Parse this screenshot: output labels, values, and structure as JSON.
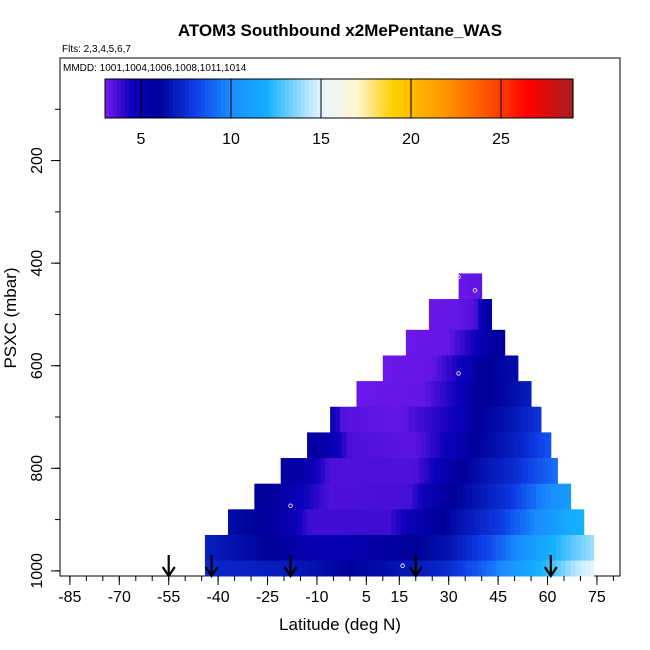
{
  "chart_data": {
    "type": "heatmap",
    "title": "ATOM3 Southbound x2MePentane_WAS",
    "flights_note": "Flts: 2,3,4,5,6,7",
    "mmdd_note": "MMDD: 1001,1004,1006,1008,1011,1014",
    "xlabel": "Latitude (deg N)",
    "ylabel": "PSXC (mbar)",
    "xlim": [
      -88,
      82
    ],
    "ylim": [
      1010,
      0
    ],
    "x_ticks": [
      -85,
      -70,
      -55,
      -40,
      -25,
      -10,
      5,
      15,
      30,
      45,
      60,
      75
    ],
    "x_tick_labels": [
      "-85",
      "-70",
      "-55",
      "-40",
      "-25",
      "-10",
      "5",
      "15",
      "30",
      "45",
      "60",
      "75"
    ],
    "y_ticks": [
      200,
      400,
      600,
      800,
      1000
    ],
    "y_tick_labels": [
      "200",
      "400",
      "600",
      "800",
      "1000"
    ],
    "colorbar": {
      "min": 3,
      "max": 29,
      "ticks": [
        5,
        10,
        15,
        20,
        25
      ],
      "tick_labels": [
        "5",
        "10",
        "15",
        "20",
        "25"
      ],
      "stops": [
        {
          "v": 3,
          "c": "#7a1bf0"
        },
        {
          "v": 4.5,
          "c": "#0b00bb"
        },
        {
          "v": 6,
          "c": "#000098"
        },
        {
          "v": 8,
          "c": "#0f3ee8"
        },
        {
          "v": 10,
          "c": "#1a8dff"
        },
        {
          "v": 12,
          "c": "#14b0ff"
        },
        {
          "v": 15,
          "c": "#e6f6ff"
        },
        {
          "v": 17,
          "c": "#fff6d2"
        },
        {
          "v": 19,
          "c": "#ffd000"
        },
        {
          "v": 22,
          "c": "#ff9400"
        },
        {
          "v": 25,
          "c": "#ff3a00"
        },
        {
          "v": 26.5,
          "c": "#ff0000"
        },
        {
          "v": 29,
          "c": "#a51e22"
        }
      ]
    },
    "arrow_latitudes": [
      -55,
      -42,
      -18,
      20,
      61
    ],
    "sample_points": [
      {
        "x": 33,
        "y": 427
      },
      {
        "x": 38,
        "y": 453
      },
      {
        "x": 33,
        "y": 615
      },
      {
        "x": -18,
        "y": 873
      },
      {
        "x": 16,
        "y": 990
      }
    ],
    "layers": [
      {
        "p_top": 420,
        "p_bot": 470,
        "lat_min": 33,
        "lat_max": 40,
        "cols": [
          [
            33,
            3.2
          ],
          [
            40,
            3.4
          ]
        ]
      },
      {
        "p_top": 470,
        "p_bot": 530,
        "lat_min": 24,
        "lat_max": 43,
        "cols": [
          [
            24,
            3.2
          ],
          [
            33,
            3.3
          ],
          [
            38,
            3.6
          ],
          [
            41,
            5.2
          ],
          [
            43,
            5.8
          ]
        ]
      },
      {
        "p_top": 530,
        "p_bot": 580,
        "lat_min": 17,
        "lat_max": 47,
        "cols": [
          [
            17,
            3.2
          ],
          [
            30,
            3.3
          ],
          [
            38,
            4.5
          ],
          [
            42,
            5.4
          ],
          [
            47,
            6.0
          ]
        ]
      },
      {
        "p_top": 580,
        "p_bot": 630,
        "lat_min": 10,
        "lat_max": 51,
        "cols": [
          [
            10,
            3.2
          ],
          [
            25,
            3.3
          ],
          [
            36,
            4.8
          ],
          [
            40,
            5.8
          ],
          [
            46,
            6.2
          ],
          [
            51,
            6.4
          ]
        ]
      },
      {
        "p_top": 630,
        "p_bot": 680,
        "lat_min": 2,
        "lat_max": 55,
        "cols": [
          [
            2,
            3.2
          ],
          [
            22,
            3.3
          ],
          [
            34,
            4.6
          ],
          [
            38,
            5.8
          ],
          [
            48,
            6.3
          ],
          [
            55,
            7.0
          ]
        ]
      },
      {
        "p_top": 680,
        "p_bot": 730,
        "lat_min": -6,
        "lat_max": 58,
        "cols": [
          [
            -6,
            5.0
          ],
          [
            -2,
            3.5
          ],
          [
            15,
            3.3
          ],
          [
            34,
            4.6
          ],
          [
            38,
            5.9
          ],
          [
            50,
            6.8
          ],
          [
            58,
            7.7
          ]
        ]
      },
      {
        "p_top": 730,
        "p_bot": 780,
        "lat_min": -13,
        "lat_max": 61,
        "cols": [
          [
            -13,
            5.6
          ],
          [
            -6,
            5.2
          ],
          [
            0,
            3.6
          ],
          [
            20,
            3.4
          ],
          [
            33,
            5.0
          ],
          [
            38,
            6.0
          ],
          [
            52,
            7.2
          ],
          [
            61,
            8.6
          ]
        ]
      },
      {
        "p_top": 780,
        "p_bot": 830,
        "lat_min": -21,
        "lat_max": 63,
        "cols": [
          [
            -21,
            5.8
          ],
          [
            -14,
            5.3
          ],
          [
            -6,
            3.6
          ],
          [
            20,
            3.6
          ],
          [
            30,
            5.2
          ],
          [
            36,
            6.2
          ],
          [
            50,
            7.4
          ],
          [
            58,
            8.6
          ],
          [
            63,
            9.3
          ]
        ]
      },
      {
        "p_top": 830,
        "p_bot": 880,
        "lat_min": -29,
        "lat_max": 67,
        "cols": [
          [
            -29,
            6.0
          ],
          [
            -22,
            5.6
          ],
          [
            -15,
            4.6
          ],
          [
            -6,
            3.6
          ],
          [
            18,
            3.7
          ],
          [
            26,
            5.3
          ],
          [
            34,
            6.2
          ],
          [
            48,
            7.6
          ],
          [
            58,
            9.6
          ],
          [
            67,
            10.8
          ]
        ]
      },
      {
        "p_top": 880,
        "p_bot": 930,
        "lat_min": -37,
        "lat_max": 71,
        "cols": [
          [
            -37,
            6.4
          ],
          [
            -28,
            6.0
          ],
          [
            -20,
            5.2
          ],
          [
            -12,
            3.8
          ],
          [
            12,
            3.8
          ],
          [
            20,
            5.0
          ],
          [
            30,
            6.2
          ],
          [
            45,
            7.8
          ],
          [
            58,
            10.2
          ],
          [
            67,
            11.8
          ],
          [
            71,
            12.0
          ]
        ]
      },
      {
        "p_top": 930,
        "p_bot": 980,
        "lat_min": -44,
        "lat_max": 74,
        "cols": [
          [
            -44,
            7.0
          ],
          [
            -36,
            6.6
          ],
          [
            -28,
            6.2
          ],
          [
            -20,
            5.6
          ],
          [
            -10,
            4.8
          ],
          [
            0,
            5.0
          ],
          [
            10,
            5.6
          ],
          [
            20,
            6.0
          ],
          [
            30,
            6.6
          ],
          [
            42,
            8.2
          ],
          [
            55,
            10.8
          ],
          [
            65,
            12.6
          ],
          [
            74,
            14.0
          ]
        ]
      },
      {
        "p_top": 980,
        "p_bot": 1010,
        "lat_min": -44,
        "lat_max": 74,
        "cols": [
          [
            -44,
            7.3
          ],
          [
            -34,
            7.1
          ],
          [
            -26,
            7.0
          ],
          [
            -18,
            6.8
          ],
          [
            -8,
            6.4
          ],
          [
            0,
            6.0
          ],
          [
            10,
            6.4
          ],
          [
            20,
            6.8
          ],
          [
            30,
            7.4
          ],
          [
            40,
            8.8
          ],
          [
            52,
            11.0
          ],
          [
            62,
            12.8
          ],
          [
            70,
            14.6
          ],
          [
            74,
            15.0
          ]
        ]
      }
    ]
  }
}
